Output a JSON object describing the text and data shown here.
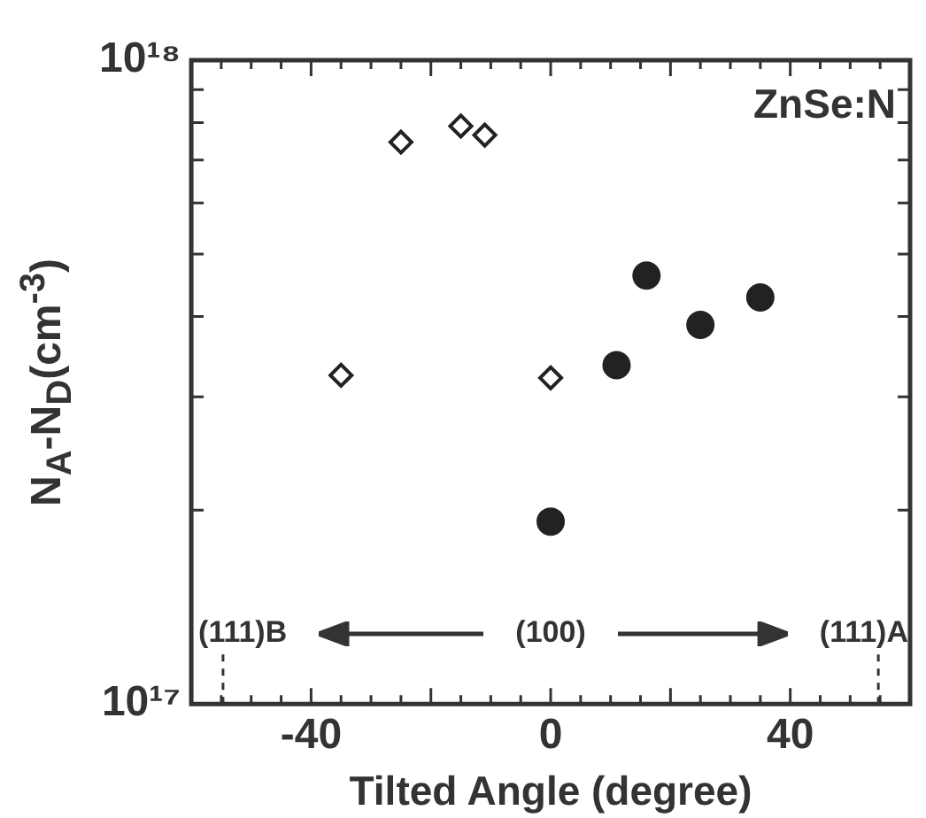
{
  "chart_data": {
    "type": "scatter",
    "xlabel": "Tilted Angle (degree)",
    "ylabel": "N$_{A}$-N$_{D}$(cm$^{-3}$)",
    "annotations": [
      "ZnSe:N",
      "(100)"
    ],
    "xlim": [
      -60,
      60
    ],
    "xticks": [
      {
        "value": -60,
        "label": null
      },
      {
        "value": -55,
        "label": null
      },
      {
        "value": -50,
        "label": null
      },
      {
        "value": -45,
        "label": null
      },
      {
        "value": -40,
        "label": "-40"
      },
      {
        "value": -35,
        "label": null
      },
      {
        "value": -30,
        "label": null
      },
      {
        "value": -25,
        "label": null
      },
      {
        "value": -20,
        "label": null
      },
      {
        "value": -15,
        "label": null
      },
      {
        "value": -10,
        "label": null
      },
      {
        "value": -5,
        "label": null
      },
      0,
      {
        "value": 5,
        "label": null
      },
      {
        "value": 10,
        "label": null
      },
      {
        "value": 15,
        "label": null
      },
      {
        "value": 20,
        "label": null
      },
      {
        "value": 25,
        "label": null
      },
      {
        "value": 30,
        "label": null
      },
      {
        "value": 35,
        "label": null
      },
      40,
      {
        "value": 45,
        "label": null
      },
      {
        "value": 50,
        "label": null
      },
      {
        "value": 55,
        "label": null
      },
      {
        "value": 60,
        "label": null
      }
    ],
    "ylim": [
      1e+17,
      1e+18
    ],
    "yticks": [
      {
        "value": 1e+17,
        "label": "10¹⁷"
      },
      {
        "value": 2e+17,
        "label": null
      },
      {
        "value": 3e+17,
        "label": null
      },
      {
        "value": 4e+17,
        "label": null
      },
      {
        "value": 5e+17,
        "label": null
      },
      {
        "value": 6e+17,
        "label": null
      },
      {
        "value": 7e+17,
        "label": null
      },
      {
        "value": 8e+17,
        "label": null
      },
      {
        "value": 9e+17,
        "label": null
      },
      {
        "value": 1e+18,
        "label": "10¹⁸"
      }
    ],
    "log": "y",
    "grid": false,
    "ref_lines": [
      {
        "axis": "x",
        "value": -54.7,
        "label": "(111)B",
        "line_style": "dashed"
      },
      {
        "axis": "x",
        "value": 54.7,
        "label": "(111)A",
        "line_style": "dashed"
      }
    ],
    "series": [
      {
        "marker": "diamond",
        "color": "#222222",
        "x": [
          -35,
          -25,
          -15,
          -11,
          0
        ],
        "values": [
          3.24e+17,
          7.46e+17,
          7.9e+17,
          7.65e+17,
          3.21e+17
        ]
      },
      {
        "marker": "circle",
        "color": "#222222",
        "x": [
          0,
          11,
          16,
          25,
          35
        ],
        "values": [
          1.92e+17,
          3.36e+17,
          4.63e+17,
          3.88e+17,
          4.28e+17
        ]
      }
    ]
  }
}
